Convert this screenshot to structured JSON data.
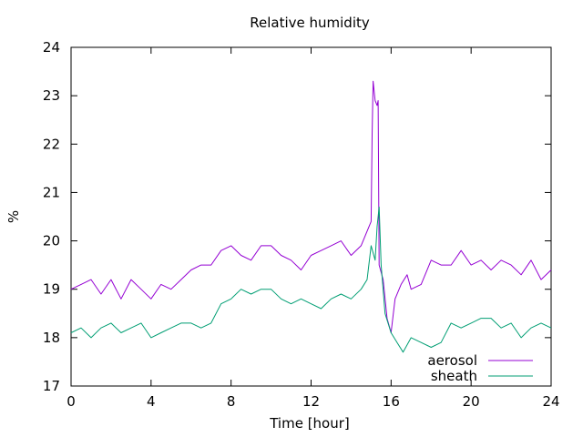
{
  "chart_data": {
    "type": "line",
    "title": "Relative humidity",
    "xlabel": "Time [hour]",
    "ylabel": "%",
    "xlim": [
      0,
      24
    ],
    "ylim": [
      17,
      24
    ],
    "xticks": [
      0,
      4,
      8,
      12,
      16,
      20,
      24
    ],
    "yticks": [
      17,
      18,
      19,
      20,
      21,
      22,
      23,
      24
    ],
    "grid": false,
    "legend_position": "bottom-right",
    "series": [
      {
        "name": "aerosol",
        "color": "#9400d3",
        "x": [
          0,
          0.5,
          1,
          1.5,
          2,
          2.5,
          3,
          3.5,
          4,
          4.5,
          5,
          5.5,
          6,
          6.5,
          7,
          7.5,
          8,
          8.5,
          9,
          9.5,
          10,
          10.5,
          11,
          11.5,
          12,
          12.5,
          13,
          13.5,
          14,
          14.5,
          14.8,
          15,
          15.05,
          15.1,
          15.2,
          15.3,
          15.35,
          15.4,
          15.6,
          15.8,
          16,
          16.2,
          16.5,
          16.8,
          17,
          17.5,
          18,
          18.5,
          19,
          19.5,
          20,
          20.5,
          21,
          21.5,
          22,
          22.5,
          23,
          23.5,
          24
        ],
        "y": [
          19.0,
          19.1,
          19.2,
          18.9,
          19.2,
          18.8,
          19.2,
          19.0,
          18.8,
          19.1,
          19.0,
          19.2,
          19.4,
          19.5,
          19.5,
          19.8,
          19.9,
          19.7,
          19.6,
          19.9,
          19.9,
          19.7,
          19.6,
          19.4,
          19.7,
          19.8,
          19.9,
          20.0,
          19.7,
          19.9,
          20.2,
          20.4,
          22.2,
          23.3,
          22.9,
          22.8,
          22.9,
          19.5,
          19.2,
          18.4,
          18.1,
          18.8,
          19.1,
          19.3,
          19.0,
          19.1,
          19.6,
          19.5,
          19.5,
          19.8,
          19.5,
          19.6,
          19.4,
          19.6,
          19.5,
          19.3,
          19.6,
          19.2,
          19.4
        ]
      },
      {
        "name": "sheath",
        "color": "#009e73",
        "x": [
          0,
          0.5,
          1,
          1.5,
          2,
          2.5,
          3,
          3.5,
          4,
          4.5,
          5,
          5.5,
          6,
          6.5,
          7,
          7.5,
          8,
          8.5,
          9,
          9.5,
          10,
          10.5,
          11,
          11.5,
          12,
          12.5,
          13,
          13.5,
          14,
          14.5,
          14.8,
          15,
          15.2,
          15.3,
          15.4,
          15.5,
          15.7,
          16,
          16.3,
          16.6,
          17,
          17.5,
          18,
          18.5,
          19,
          19.5,
          20,
          20.5,
          21,
          21.5,
          22,
          22.5,
          23,
          23.5,
          24
        ],
        "y": [
          18.1,
          18.2,
          18.0,
          18.2,
          18.3,
          18.1,
          18.2,
          18.3,
          18.0,
          18.1,
          18.2,
          18.3,
          18.3,
          18.2,
          18.3,
          18.7,
          18.8,
          19.0,
          18.9,
          19.0,
          19.0,
          18.8,
          18.7,
          18.8,
          18.7,
          18.6,
          18.8,
          18.9,
          18.8,
          19.0,
          19.2,
          19.9,
          19.6,
          20.3,
          20.7,
          19.5,
          18.5,
          18.1,
          17.9,
          17.7,
          18.0,
          17.9,
          17.8,
          17.9,
          18.3,
          18.2,
          18.3,
          18.4,
          18.4,
          18.2,
          18.3,
          18.0,
          18.2,
          18.3,
          18.2
        ]
      }
    ]
  }
}
